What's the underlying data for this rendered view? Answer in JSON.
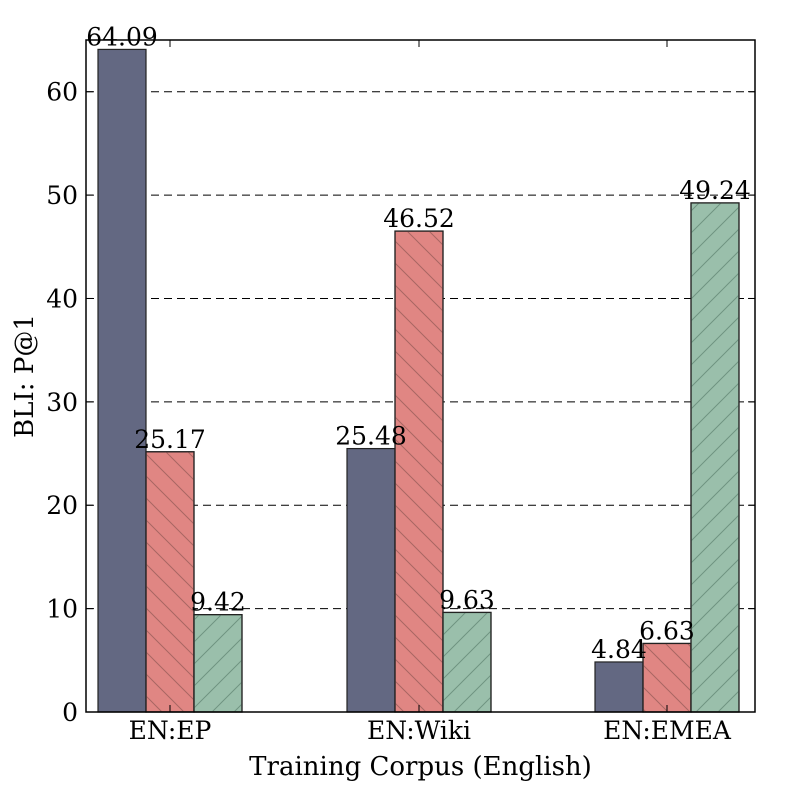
{
  "chart_data": {
    "type": "bar",
    "xlabel": "Training Corpus (English)",
    "ylabel": "BLI: P@1",
    "ylim": [
      0,
      65
    ],
    "yticks": [
      0,
      10,
      20,
      30,
      40,
      50,
      60
    ],
    "grid": "y-dashed",
    "legend": "none",
    "categories": [
      "EN:EP",
      "EN:Wiki",
      "EN:EMEA"
    ],
    "series": [
      {
        "values": [
          64.09,
          25.48,
          4.84
        ],
        "color": "#636882",
        "hatch": "none"
      },
      {
        "values": [
          25.17,
          46.52,
          6.63
        ],
        "color": "#e08683",
        "hatch": "back-diagonal"
      },
      {
        "values": [
          9.42,
          9.63,
          49.24
        ],
        "color": "#9abfab",
        "hatch": "forward-diagonal"
      }
    ],
    "data_labels": [
      [
        "64.09",
        "25.48",
        "4.84"
      ],
      [
        "25.17",
        "46.52",
        "6.63"
      ],
      [
        "9.42",
        "9.63",
        "49.24"
      ]
    ]
  }
}
